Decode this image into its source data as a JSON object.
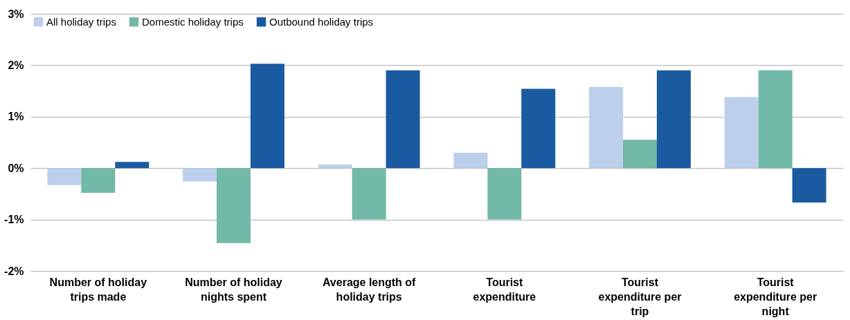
{
  "chart_data": {
    "type": "bar",
    "categories": [
      "Number of holiday trips made",
      "Number of holiday nights spent",
      "Average length of holiday trips",
      "Tourist expenditure",
      "Tourist expenditure per trip",
      "Tourist expenditure per night"
    ],
    "series": [
      {
        "name": "All holiday trips",
        "color": "#bccfeb",
        "values": [
          -0.33,
          -0.26,
          0.07,
          0.3,
          1.58,
          1.38
        ]
      },
      {
        "name": "Domestic holiday trips",
        "color": "#72b9a8",
        "values": [
          -0.48,
          -1.46,
          -1.0,
          -1.0,
          0.55,
          1.9
        ]
      },
      {
        "name": "Outbound holiday trips",
        "color": "#1a5aa0",
        "values": [
          0.12,
          2.03,
          1.9,
          1.54,
          1.9,
          -0.67
        ]
      }
    ],
    "ylim": [
      -2,
      3
    ],
    "yticks": [
      {
        "value": -2,
        "label": "-2%"
      },
      {
        "value": -1,
        "label": "-1%"
      },
      {
        "value": 0,
        "label": "0%"
      },
      {
        "value": 1,
        "label": "1%"
      },
      {
        "value": 2,
        "label": "2%"
      },
      {
        "value": 3,
        "label": "3%"
      }
    ],
    "grid": "y",
    "legend": "top left"
  }
}
